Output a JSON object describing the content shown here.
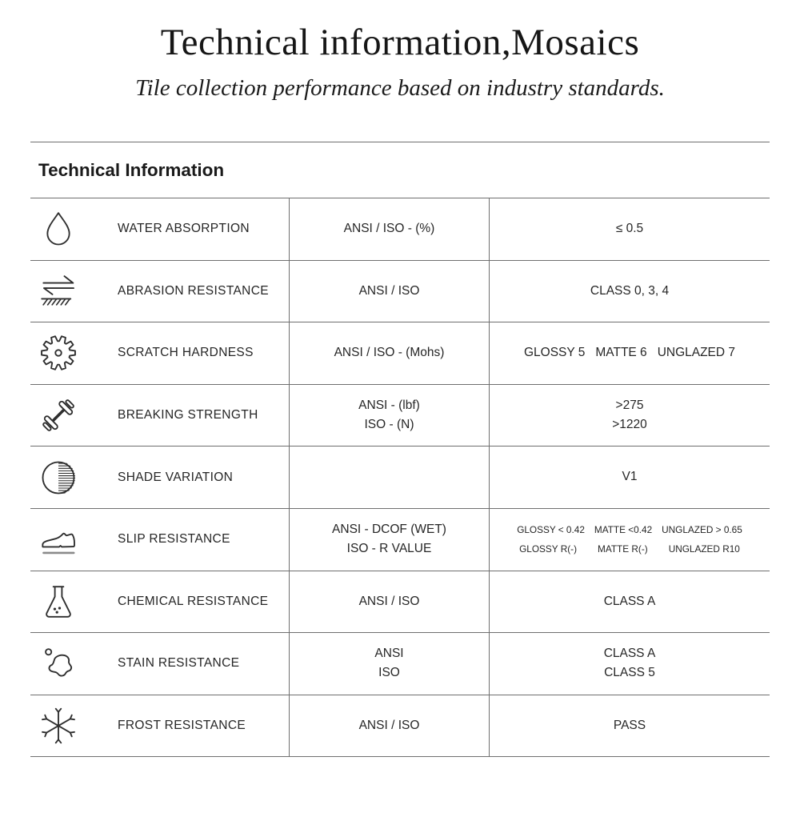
{
  "page": {
    "title": "Technical information,Mosaics",
    "subtitle": "Tile collection performance based on industry standards.",
    "section_title": "Technical Information"
  },
  "colors": {
    "text": "#1f1f1f",
    "line": "#6f6f6f",
    "icon_stroke": "#2e2e2e"
  },
  "table": {
    "rows": [
      {
        "icon": "droplet-icon",
        "property": "WATER ABSORPTION",
        "standard_lines": [
          "ANSI / ISO - (%)"
        ],
        "value_lines": [
          [
            "≤ 0.5"
          ]
        ],
        "value_small": false
      },
      {
        "icon": "abrasion-icon",
        "property": "ABRASION RESISTANCE",
        "standard_lines": [
          "ANSI / ISO"
        ],
        "value_lines": [
          [
            "CLASS 0, 3, 4"
          ]
        ],
        "value_small": false
      },
      {
        "icon": "gear-icon",
        "property": "SCRATCH HARDNESS",
        "standard_lines": [
          "ANSI / ISO - (Mohs)"
        ],
        "value_lines": [
          [
            "GLOSSY 5",
            "MATTE 6",
            "UNGLAZED 7"
          ]
        ],
        "value_small": false
      },
      {
        "icon": "dumbbell-icon",
        "property": "BREAKING STRENGTH",
        "standard_lines": [
          "ANSI - (lbf)",
          "ISO - (N)"
        ],
        "value_lines": [
          [
            ">275"
          ],
          [
            ">1220"
          ]
        ],
        "value_small": false
      },
      {
        "icon": "shade-circle-icon",
        "property": "SHADE VARIATION",
        "standard_lines": [],
        "value_lines": [
          [
            "V1"
          ]
        ],
        "value_small": false
      },
      {
        "icon": "shoe-icon",
        "property": "SLIP RESISTANCE",
        "standard_lines": [
          "ANSI - DCOF (WET)",
          "ISO - R VALUE"
        ],
        "value_lines": [
          [
            "GLOSSY < 0.42",
            "MATTE <0.42",
            "UNGLAZED > 0.65"
          ],
          [
            "GLOSSY R(-)",
            "MATTE R(-)",
            "UNGLAZED R10"
          ]
        ],
        "value_small": true
      },
      {
        "icon": "flask-icon",
        "property": "CHEMICAL RESISTANCE",
        "standard_lines": [
          "ANSI / ISO"
        ],
        "value_lines": [
          [
            "CLASS A"
          ]
        ],
        "value_small": false
      },
      {
        "icon": "stain-icon",
        "property": "STAIN RESISTANCE",
        "standard_lines": [
          "ANSI",
          "ISO"
        ],
        "value_lines": [
          [
            "CLASS A"
          ],
          [
            "CLASS 5"
          ]
        ],
        "value_small": false
      },
      {
        "icon": "snowflake-icon",
        "property": "FROST RESISTANCE",
        "standard_lines": [
          "ANSI / ISO"
        ],
        "value_lines": [
          [
            "PASS"
          ]
        ],
        "value_small": false
      }
    ]
  }
}
